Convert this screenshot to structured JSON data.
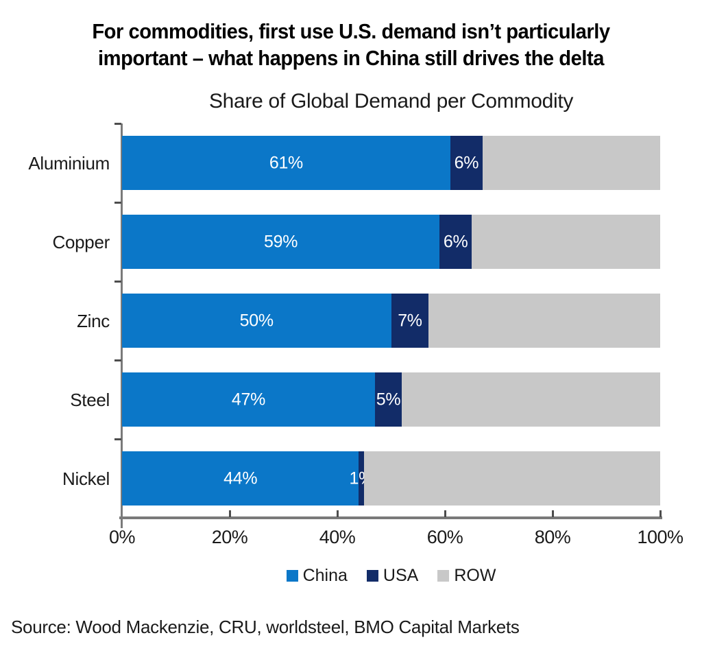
{
  "headline": {
    "line1": "For commodities, first use U.S. demand isn’t particularly",
    "line2": "important – what happens in China still drives the delta"
  },
  "chart_data": {
    "type": "bar",
    "orientation": "horizontal",
    "stacked": true,
    "title": "Share of Global Demand per Commodity",
    "categories": [
      "Aluminium",
      "Copper",
      "Zinc",
      "Steel",
      "Nickel"
    ],
    "series": [
      {
        "name": "China",
        "color": "#0b77c8",
        "values": [
          61,
          59,
          50,
          47,
          44
        ],
        "labels": [
          "61%",
          "59%",
          "50%",
          "47%",
          "44%"
        ]
      },
      {
        "name": "USA",
        "color": "#122c68",
        "values": [
          6,
          6,
          7,
          5,
          1
        ],
        "labels": [
          "6%",
          "6%",
          "7%",
          "5%",
          "1%"
        ]
      },
      {
        "name": "ROW",
        "color": "#c8c8c8",
        "values": [
          33,
          35,
          43,
          48,
          55
        ],
        "labels": [
          "",
          "",
          "",
          "",
          ""
        ]
      }
    ],
    "xlim": [
      0,
      100
    ],
    "x_ticks": [
      "0%",
      "20%",
      "40%",
      "60%",
      "80%",
      "100%"
    ],
    "legend_position": "bottom",
    "grid": false,
    "axis_color": "#7a7a7a",
    "tick_color": "#4d4d4d",
    "label_text_color": "#ffffff"
  },
  "source": "Source: Wood Mackenzie, CRU, worldsteel, BMO Capital Markets"
}
